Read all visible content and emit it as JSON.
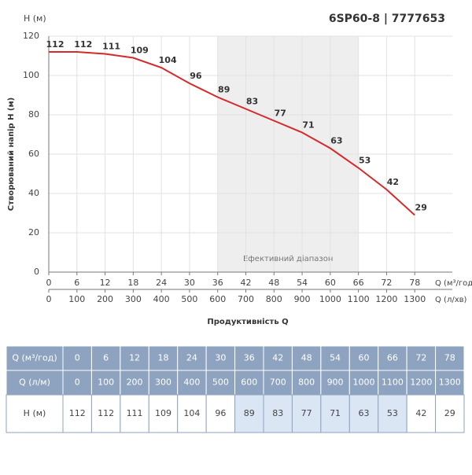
{
  "chart_data": {
    "type": "line",
    "title": "6SP60-8 | 7777653",
    "y_unit_label": "H (м)",
    "y_label": "Створюваний напір H (м)",
    "x_label": "Продуктивність Q",
    "x_unit_label": "Q (м³/год)",
    "x2_unit_label": "Q (л/хв)",
    "x": [
      0,
      6,
      12,
      18,
      24,
      30,
      36,
      42,
      48,
      54,
      60,
      66,
      72,
      78
    ],
    "values": [
      112,
      112,
      111,
      109,
      104,
      96,
      89,
      83,
      77,
      71,
      63,
      53,
      42,
      29
    ],
    "color": "#d42a2a",
    "xlim": [
      0,
      84
    ],
    "xticks": [
      0,
      6,
      12,
      18,
      24,
      30,
      36,
      42,
      48,
      54,
      60,
      66,
      72,
      78
    ],
    "x2lim": [
      0,
      1400
    ],
    "x2ticks": [
      0,
      100,
      200,
      300,
      400,
      500,
      600,
      700,
      800,
      900,
      1000,
      1100,
      1200,
      1300
    ],
    "ylim": [
      0,
      120
    ],
    "yticks": [
      0,
      20,
      40,
      60,
      80,
      100,
      120
    ],
    "grid": true,
    "efficient_range": [
      36,
      66
    ],
    "efficient_label": "Ефективний діапазон"
  },
  "table": {
    "rows": [
      {
        "label": "Q (м³/год)",
        "cells": [
          "0",
          "6",
          "12",
          "18",
          "24",
          "30",
          "36",
          "42",
          "48",
          "54",
          "60",
          "66",
          "72",
          "78"
        ]
      },
      {
        "label": "Q (л/м)",
        "cells": [
          "0",
          "100",
          "200",
          "300",
          "400",
          "500",
          "600",
          "700",
          "800",
          "900",
          "1000",
          "1100",
          "1200",
          "1300"
        ]
      },
      {
        "label": "H (м)",
        "cells": [
          "112",
          "112",
          "111",
          "109",
          "104",
          "96",
          "89",
          "83",
          "77",
          "71",
          "63",
          "53",
          "42",
          "29"
        ]
      }
    ]
  }
}
